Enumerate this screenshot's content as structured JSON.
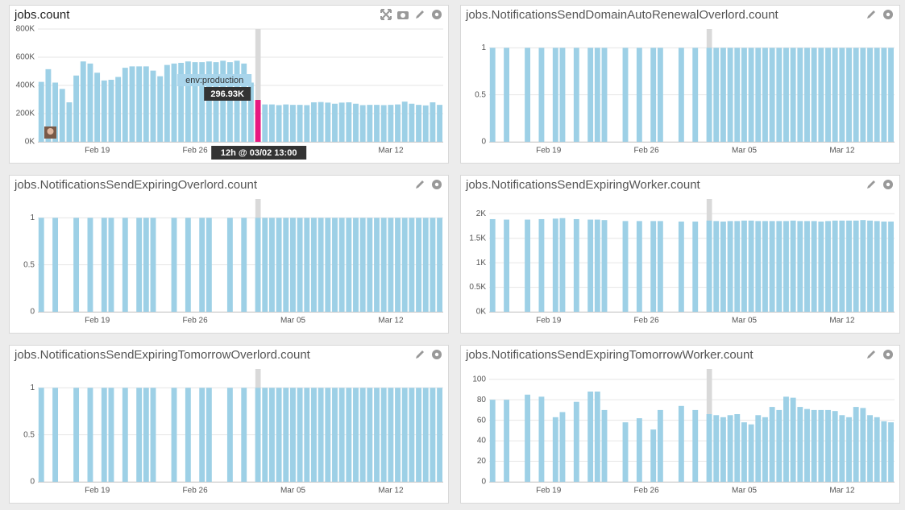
{
  "chart_data": [
    {
      "type": "bar",
      "title": "jobs.count",
      "categories": [
        null,
        null,
        null,
        null,
        null,
        null,
        null,
        null,
        "Feb 19",
        null,
        null,
        null,
        null,
        null,
        null,
        null,
        null,
        null,
        null,
        null,
        null,
        null,
        "Feb 26",
        null,
        null,
        null,
        null,
        null,
        null,
        null,
        null,
        null,
        null,
        null,
        null,
        null,
        "Mar 05",
        null,
        null,
        null,
        null,
        null,
        null,
        null,
        null,
        null,
        null,
        null,
        null,
        null,
        "Mar 12",
        null,
        null,
        null,
        null,
        null,
        null,
        null
      ],
      "values": [
        425000,
        515000,
        420000,
        375000,
        280000,
        470000,
        570000,
        555000,
        490000,
        435000,
        440000,
        460000,
        525000,
        535000,
        535000,
        535000,
        505000,
        465000,
        545000,
        555000,
        560000,
        570000,
        565000,
        565000,
        570000,
        565000,
        575000,
        565000,
        575000,
        555000,
        420000,
        296930,
        265000,
        265000,
        260000,
        265000,
        262000,
        262000,
        260000,
        280000,
        282000,
        278000,
        270000,
        278000,
        280000,
        270000,
        260000,
        262000,
        262000,
        260000,
        262000,
        265000,
        285000,
        270000,
        262000,
        258000,
        280000,
        262000
      ],
      "value_labels": [
        null,
        null,
        null,
        null,
        null,
        null,
        null,
        null,
        null,
        null,
        null,
        null,
        null,
        null,
        null,
        null,
        null,
        null,
        null,
        null,
        null,
        null,
        null,
        null,
        null,
        null,
        null,
        null,
        null,
        null,
        null,
        "296.93K",
        null,
        null,
        null,
        null,
        null,
        null,
        null,
        null,
        null,
        null,
        null,
        null,
        null,
        null,
        null,
        null,
        null,
        null,
        null,
        null,
        null,
        null,
        null,
        null,
        null,
        null
      ],
      "color": "#9dd0e6",
      "highlight_color": "#e8177f",
      "tooltip": {
        "tag": "env:production",
        "time": "12h @ 03/02 13:00"
      },
      "ylim": [
        0,
        800000
      ],
      "yticks": [
        {
          "value": 0,
          "label": "0K"
        },
        {
          "value": 200000,
          "label": "200K"
        },
        {
          "value": 400000,
          "label": "400K"
        },
        {
          "value": 600000,
          "label": "600K"
        },
        {
          "value": 800000,
          "label": "800K"
        }
      ],
      "grid": true
    },
    {
      "type": "bar",
      "title": "jobs.NotificationsSendDomainAutoRenewalOverlord.count",
      "categories": [
        null,
        null,
        null,
        null,
        null,
        null,
        null,
        null,
        "Feb 19",
        null,
        null,
        null,
        null,
        null,
        null,
        null,
        null,
        null,
        null,
        null,
        null,
        null,
        "Feb 26",
        null,
        null,
        null,
        null,
        null,
        null,
        null,
        null,
        null,
        null,
        null,
        null,
        null,
        "Mar 05",
        null,
        null,
        null,
        null,
        null,
        null,
        null,
        null,
        null,
        null,
        null,
        null,
        null,
        "Mar 12",
        null,
        null,
        null,
        null,
        null,
        null,
        null
      ],
      "values": [
        1,
        null,
        1,
        null,
        null,
        1,
        null,
        1,
        null,
        1,
        1,
        null,
        1,
        null,
        1,
        1,
        1,
        null,
        null,
        1,
        null,
        1,
        null,
        1,
        1,
        null,
        null,
        1,
        null,
        1,
        null,
        1,
        1,
        1,
        1,
        1,
        1,
        1,
        1,
        1,
        1,
        1,
        1,
        1,
        1,
        1,
        1,
        1,
        1,
        1,
        1,
        1,
        1,
        1,
        1,
        1,
        1,
        1
      ],
      "color": "#9dd0e6",
      "ylim": [
        0,
        1.2
      ],
      "yticks": [
        0,
        0.5,
        1
      ],
      "grid": true
    },
    {
      "type": "bar",
      "title": "jobs.NotificationsSendExpiringOverlord.count",
      "categories": [
        null,
        null,
        null,
        null,
        null,
        null,
        null,
        null,
        "Feb 19",
        null,
        null,
        null,
        null,
        null,
        null,
        null,
        null,
        null,
        null,
        null,
        null,
        null,
        "Feb 26",
        null,
        null,
        null,
        null,
        null,
        null,
        null,
        null,
        null,
        null,
        null,
        null,
        null,
        "Mar 05",
        null,
        null,
        null,
        null,
        null,
        null,
        null,
        null,
        null,
        null,
        null,
        null,
        null,
        "Mar 12",
        null,
        null,
        null,
        null,
        null,
        null,
        null
      ],
      "values": [
        1,
        null,
        1,
        null,
        null,
        1,
        null,
        1,
        null,
        1,
        1,
        null,
        1,
        null,
        1,
        1,
        1,
        null,
        null,
        1,
        null,
        1,
        null,
        1,
        1,
        null,
        null,
        1,
        null,
        1,
        null,
        1,
        1,
        1,
        1,
        1,
        1,
        1,
        1,
        1,
        1,
        1,
        1,
        1,
        1,
        1,
        1,
        1,
        1,
        1,
        1,
        1,
        1,
        1,
        1,
        1,
        1,
        1
      ],
      "color": "#9dd0e6",
      "ylim": [
        0,
        1.2
      ],
      "yticks": [
        0,
        0.5,
        1
      ],
      "grid": true
    },
    {
      "type": "bar",
      "title": "jobs.NotificationsSendExpiringWorker.count",
      "categories": [
        null,
        null,
        null,
        null,
        null,
        null,
        null,
        null,
        "Feb 19",
        null,
        null,
        null,
        null,
        null,
        null,
        null,
        null,
        null,
        null,
        null,
        null,
        null,
        "Feb 26",
        null,
        null,
        null,
        null,
        null,
        null,
        null,
        null,
        null,
        null,
        null,
        null,
        null,
        "Mar 05",
        null,
        null,
        null,
        null,
        null,
        null,
        null,
        null,
        null,
        null,
        null,
        null,
        null,
        "Mar 12",
        null,
        null,
        null,
        null,
        null,
        null,
        null
      ],
      "values": [
        1890,
        null,
        1880,
        null,
        null,
        1880,
        null,
        1890,
        null,
        1900,
        1910,
        null,
        1890,
        null,
        1880,
        1880,
        1870,
        null,
        null,
        1850,
        null,
        1850,
        null,
        1850,
        1850,
        null,
        null,
        1840,
        null,
        1840,
        null,
        1860,
        1850,
        1840,
        1850,
        1850,
        1860,
        1860,
        1850,
        1850,
        1850,
        1850,
        1850,
        1860,
        1850,
        1850,
        1850,
        1840,
        1850,
        1860,
        1860,
        1860,
        1860,
        1870,
        1860,
        1850,
        1840,
        1840
      ],
      "color": "#9dd0e6",
      "ylim": [
        0,
        2300
      ],
      "yticks": [
        {
          "value": 0,
          "label": "0K"
        },
        {
          "value": 500,
          "label": "0.5K"
        },
        {
          "value": 1000,
          "label": "1K"
        },
        {
          "value": 1500,
          "label": "1.5K"
        },
        {
          "value": 2000,
          "label": "2K"
        }
      ],
      "grid": true
    },
    {
      "type": "bar",
      "title": "jobs.NotificationsSendExpiringTomorrowOverlord.count",
      "categories": [
        null,
        null,
        null,
        null,
        null,
        null,
        null,
        null,
        "Feb 19",
        null,
        null,
        null,
        null,
        null,
        null,
        null,
        null,
        null,
        null,
        null,
        null,
        null,
        "Feb 26",
        null,
        null,
        null,
        null,
        null,
        null,
        null,
        null,
        null,
        null,
        null,
        null,
        null,
        "Mar 05",
        null,
        null,
        null,
        null,
        null,
        null,
        null,
        null,
        null,
        null,
        null,
        null,
        null,
        "Mar 12",
        null,
        null,
        null,
        null,
        null,
        null,
        null
      ],
      "values": [
        1,
        null,
        1,
        null,
        null,
        1,
        null,
        1,
        null,
        1,
        1,
        null,
        1,
        null,
        1,
        1,
        1,
        null,
        null,
        1,
        null,
        1,
        null,
        1,
        1,
        null,
        null,
        1,
        null,
        1,
        null,
        1,
        1,
        1,
        1,
        1,
        1,
        1,
        1,
        1,
        1,
        1,
        1,
        1,
        1,
        1,
        1,
        1,
        1,
        1,
        1,
        1,
        1,
        1,
        1,
        1,
        1,
        1
      ],
      "color": "#9dd0e6",
      "ylim": [
        0,
        1.2
      ],
      "yticks": [
        0,
        0.5,
        1
      ],
      "grid": true
    },
    {
      "type": "bar",
      "title": "jobs.NotificationsSendExpiringTomorrowWorker.count",
      "categories": [
        null,
        null,
        null,
        null,
        null,
        null,
        null,
        null,
        "Feb 19",
        null,
        null,
        null,
        null,
        null,
        null,
        null,
        null,
        null,
        null,
        null,
        null,
        null,
        "Feb 26",
        null,
        null,
        null,
        null,
        null,
        null,
        null,
        null,
        null,
        null,
        null,
        null,
        null,
        "Mar 05",
        null,
        null,
        null,
        null,
        null,
        null,
        null,
        null,
        null,
        null,
        null,
        null,
        null,
        "Mar 12",
        null,
        null,
        null,
        null,
        null,
        null,
        null
      ],
      "values": [
        80,
        null,
        80,
        null,
        null,
        85,
        null,
        83,
        null,
        63,
        68,
        null,
        78,
        null,
        88,
        88,
        70,
        null,
        null,
        58,
        null,
        62,
        null,
        51,
        70,
        null,
        null,
        74,
        null,
        70,
        null,
        66,
        65,
        63,
        65,
        66,
        58,
        56,
        65,
        63,
        73,
        70,
        83,
        82,
        73,
        71,
        70,
        70,
        70,
        69,
        65,
        63,
        73,
        72,
        65,
        63,
        59,
        58
      ],
      "color": "#9dd0e6",
      "ylim": [
        0,
        110
      ],
      "yticks": [
        0,
        20,
        40,
        60,
        80,
        100
      ],
      "grid": true
    }
  ]
}
